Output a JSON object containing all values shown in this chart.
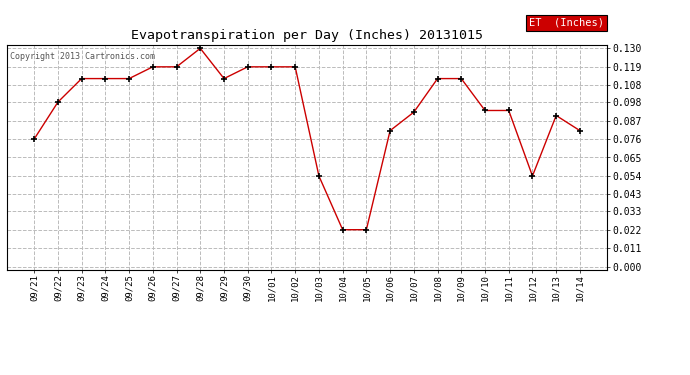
{
  "title": "Evapotranspiration per Day (Inches) 20131015",
  "copyright_text": "Copyright 2013 Cartronics.com",
  "legend_label": "ET  (Inches)",
  "legend_bg": "#cc0000",
  "legend_text_color": "#ffffff",
  "line_color": "#cc0000",
  "marker_color": "#000000",
  "background_color": "#ffffff",
  "grid_color": "#bbbbbb",
  "x_labels": [
    "09/21",
    "09/22",
    "09/23",
    "09/24",
    "09/25",
    "09/26",
    "09/27",
    "09/28",
    "09/29",
    "09/30",
    "10/01",
    "10/02",
    "10/03",
    "10/04",
    "10/05",
    "10/06",
    "10/07",
    "10/08",
    "10/09",
    "10/10",
    "10/11",
    "10/12",
    "10/13",
    "10/14"
  ],
  "y_values": [
    0.076,
    0.098,
    0.112,
    0.112,
    0.112,
    0.119,
    0.119,
    0.13,
    0.112,
    0.119,
    0.119,
    0.119,
    0.054,
    0.022,
    0.022,
    0.081,
    0.092,
    0.112,
    0.112,
    0.093,
    0.093,
    0.054,
    0.09,
    0.081
  ],
  "ylim": [
    0.0,
    0.13
  ],
  "yticks": [
    0.0,
    0.011,
    0.022,
    0.033,
    0.043,
    0.054,
    0.065,
    0.076,
    0.087,
    0.098,
    0.108,
    0.119,
    0.13
  ]
}
